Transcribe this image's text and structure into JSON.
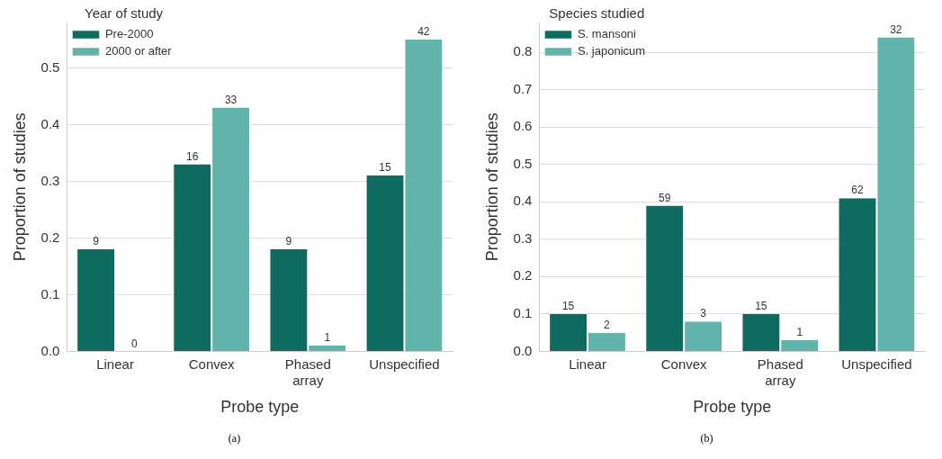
{
  "chart_data": [
    {
      "type": "bar",
      "categories": [
        "Linear",
        "Convex",
        "Phased\narray",
        "Unspecified"
      ],
      "xlabel": "Probe type",
      "ylabel": "Proportion of studies",
      "legend_title": "Year of study",
      "legend": "top left",
      "grid": "y",
      "ylim": [
        0,
        0.58
      ],
      "yticks": [
        {
          "value": 0,
          "label": "0.0"
        },
        0.1,
        0.2,
        0.3,
        0.4,
        0.5
      ],
      "annotations": [
        "(a)",
        {
          "text": "9",
          "x": "Linear",
          "y": 0.18
        },
        {
          "text": "0",
          "x": "Linear",
          "y": 0
        },
        {
          "text": "16",
          "x": "Convex",
          "y": 0.33
        },
        {
          "text": "33",
          "x": "Convex",
          "y": 0.43
        },
        {
          "text": "9",
          "x": "Phased\narray",
          "y": 0.18
        },
        {
          "text": "1",
          "x": "Phased\narray",
          "y": 0.01
        },
        {
          "text": "15",
          "x": "Unspecified",
          "y": 0.31
        },
        {
          "text": "42",
          "x": "Unspecified",
          "y": 0.55
        }
      ],
      "series": [
        {
          "name": "Pre-2000",
          "color": "#0f6b5f",
          "values": [
            0.18,
            0.33,
            0.18,
            0.31
          ]
        },
        {
          "name": "2000 or after",
          "color": "#62b4aa",
          "values": [
            0,
            0.43,
            0.01,
            0.55
          ]
        }
      ]
    },
    {
      "type": "bar",
      "categories": [
        "Linear",
        "Convex",
        "Phased\narray",
        "Unspecified"
      ],
      "xlabel": "Probe type",
      "ylabel": "Proportion of studies",
      "legend_title": "Species studied",
      "legend": "top left",
      "grid": "y",
      "ylim": [
        0,
        0.88
      ],
      "yticks": [
        {
          "value": 0,
          "label": "0.0"
        },
        0.1,
        0.2,
        0.3,
        0.4,
        0.5,
        0.6,
        0.7,
        0.8
      ],
      "annotations": [
        "(b)",
        {
          "text": "15",
          "x": "Linear",
          "y": 0.1
        },
        {
          "text": "2",
          "x": "Linear",
          "y": 0.05
        },
        {
          "text": "59",
          "x": "Convex",
          "y": 0.39
        },
        {
          "text": "3",
          "x": "Convex",
          "y": 0.08
        },
        {
          "text": "15",
          "x": "Phased\narray",
          "y": 0.1
        },
        {
          "text": "1",
          "x": "Phased\narray",
          "y": 0.03
        },
        {
          "text": "62",
          "x": "Unspecified",
          "y": 0.41
        },
        {
          "text": "32",
          "x": "Unspecified",
          "y": 0.84
        }
      ],
      "series": [
        {
          "name": "S. mansoni",
          "color": "#0f6b5f",
          "values": [
            0.1,
            0.39,
            0.1,
            0.41
          ]
        },
        {
          "name": "S. japonicum",
          "color": "#62b4aa",
          "values": [
            0.05,
            0.08,
            0.03,
            0.84
          ]
        }
      ]
    }
  ]
}
